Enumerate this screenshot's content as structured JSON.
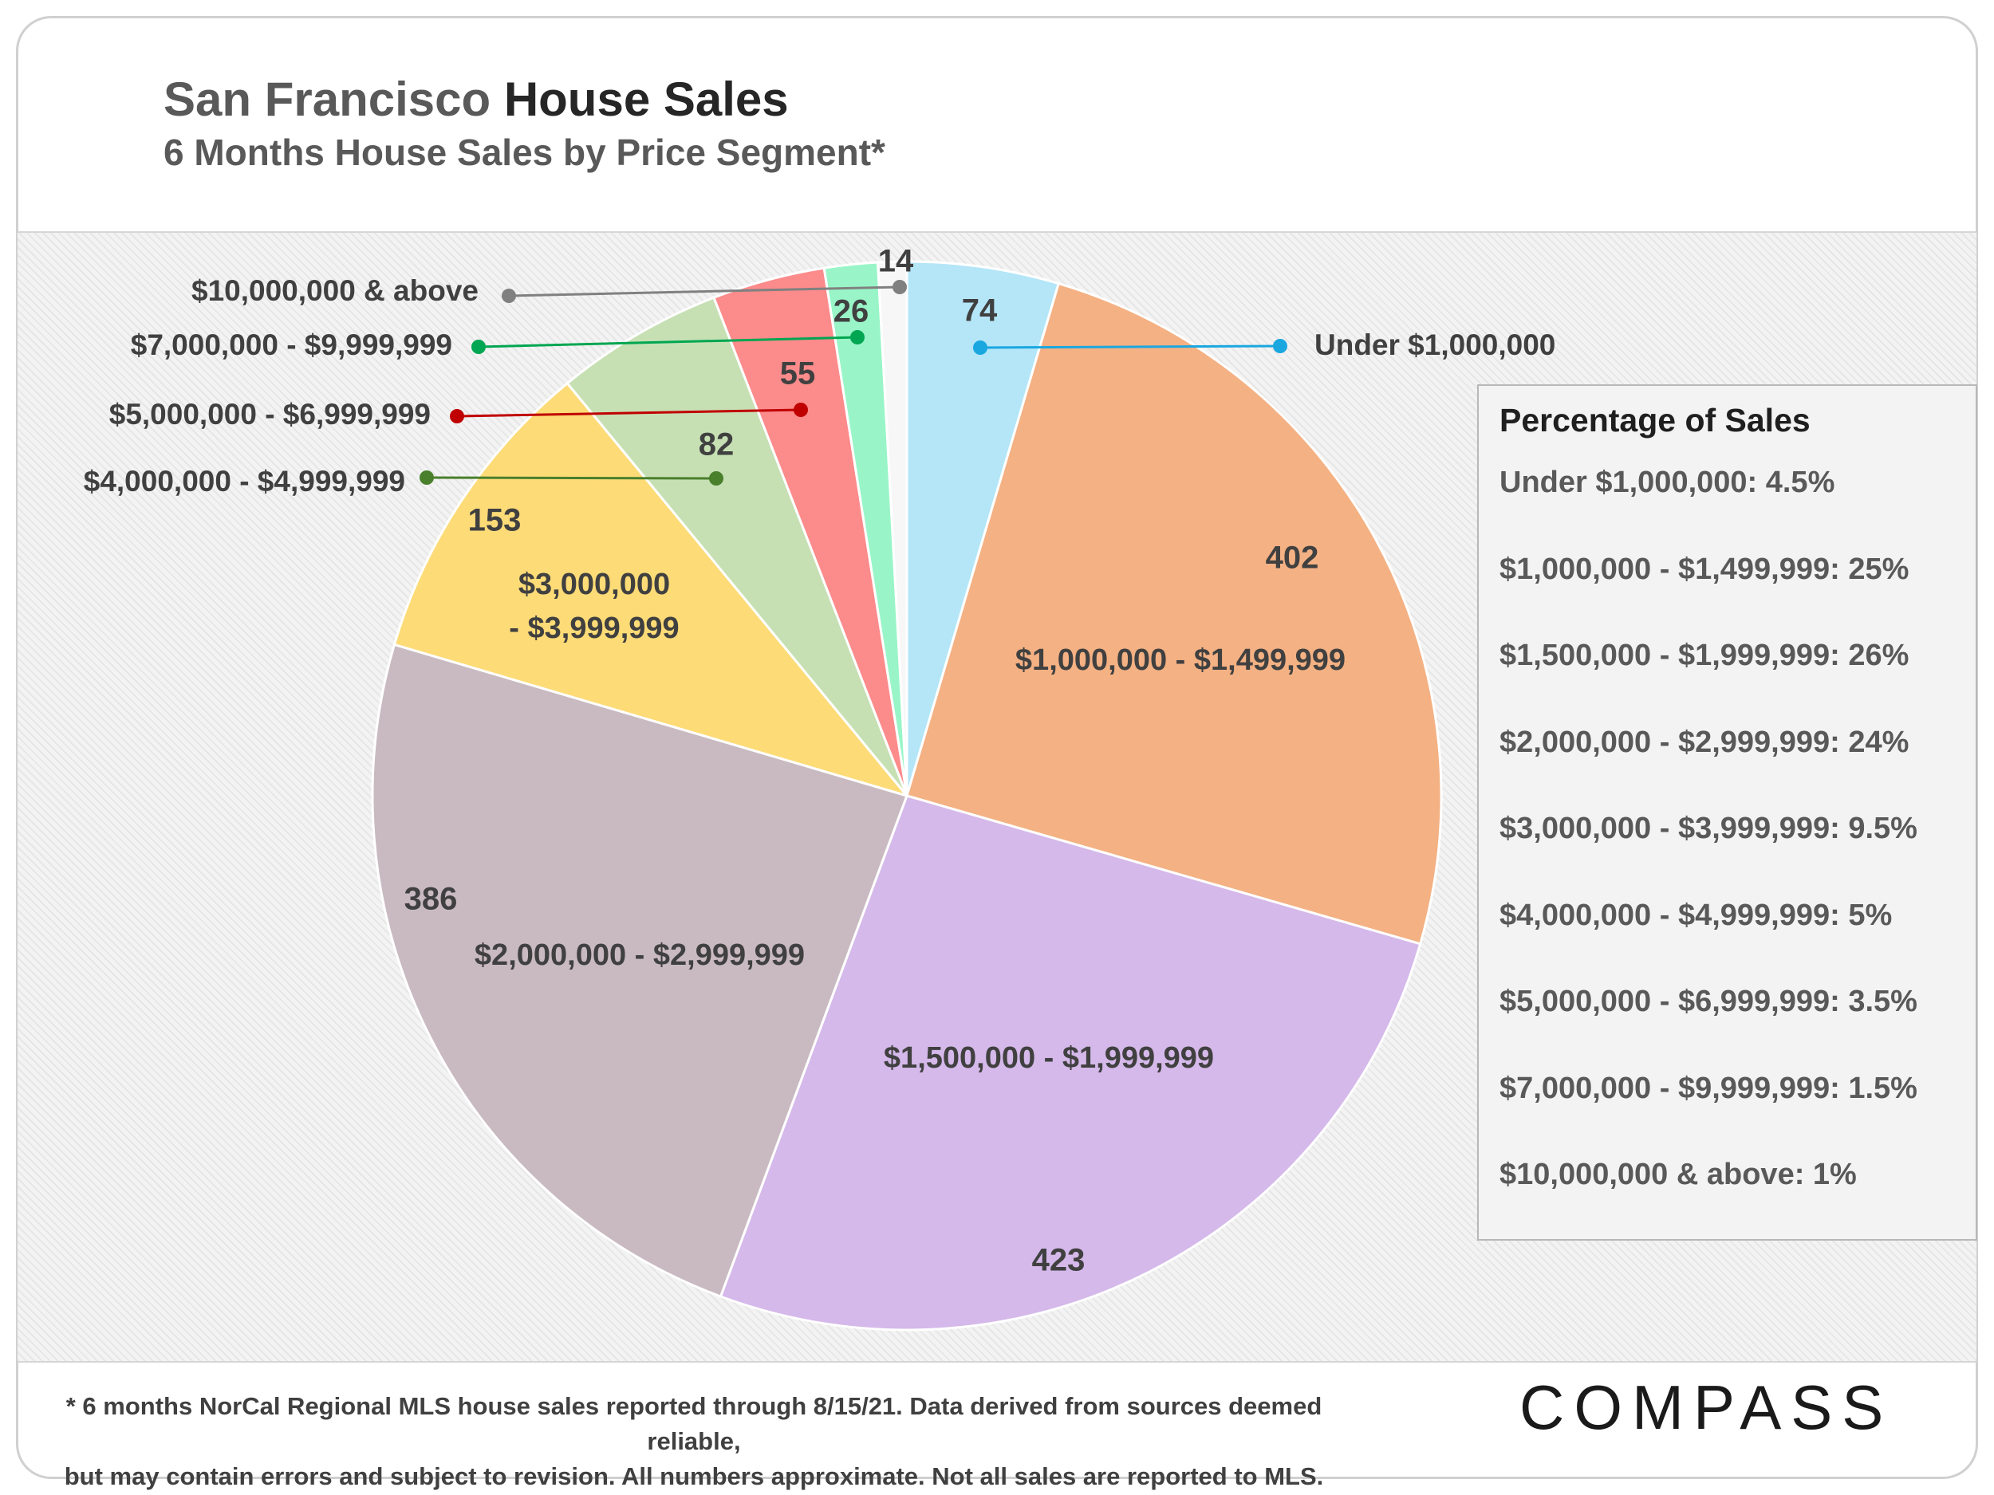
{
  "header": {
    "title_part1": "San Francisco ",
    "title_part2": "House Sales",
    "subtitle": "6 Months House Sales by Price Segment*"
  },
  "chart_data": {
    "type": "pie",
    "title": "San Francisco House Sales",
    "subtitle": "6 Months House Sales by Price Segment*",
    "slices": [
      {
        "label": "Under $1,000,000",
        "value": 74,
        "color": "#b4e6f8",
        "callout": true,
        "line_color": "#1aa7e0"
      },
      {
        "label": "$1,000,000 - $1,499,999",
        "value": 402,
        "color": "#f4b183",
        "callout": false
      },
      {
        "label": "$1,500,000 - $1,999,999",
        "value": 423,
        "color": "#d5b9ea",
        "callout": false
      },
      {
        "label": "$2,000,000 - $2,999,999",
        "value": 386,
        "color": "#c9bac1",
        "callout": false
      },
      {
        "label": "$3,000,000 - $3,999,999",
        "label_lines": [
          "$3,000,000",
          "- $3,999,999"
        ],
        "value": 153,
        "color": "#fddb77",
        "callout": false
      },
      {
        "label": "$4,000,000 - $4,999,999",
        "value": 82,
        "color": "#c6e0b4",
        "callout": true,
        "line_color": "#4a7f2c"
      },
      {
        "label": "$5,000,000 - $6,999,999",
        "value": 55,
        "color": "#fc8b8b",
        "callout": true,
        "line_color": "#c00000"
      },
      {
        "label": "$7,000,000 - $9,999,999",
        "value": 26,
        "color": "#99f5c7",
        "callout": true,
        "line_color": "#00a651"
      },
      {
        "label": "$10,000,000 & above",
        "value": 14,
        "color": "#f7f7f7",
        "callout": true,
        "line_color": "#808080"
      }
    ]
  },
  "legend": {
    "title": "Percentage of Sales",
    "items": [
      "Under $1,000,000: 4.5%",
      "$1,000,000 - $1,499,999: 25%",
      "$1,500,000 - $1,999,999: 26%",
      "$2,000,000 - $2,999,999: 24%",
      "$3,000,000 - $3,999,999: 9.5%",
      "$4,000,000 - $4,999,999: 5%",
      "$5,000,000 - $6,999,999: 3.5%",
      "$7,000,000 - $9,999,999:  1.5%",
      "$10,000,000 & above:  1%"
    ]
  },
  "footnote": {
    "line1": "* 6 months NorCal Regional MLS house sales reported through 8/15/21. Data derived from sources deemed reliable,",
    "line2": "but may contain errors and subject to revision. All numbers approximate. Not all sales are reported to MLS."
  },
  "brand": {
    "logo": "COMPASS"
  }
}
